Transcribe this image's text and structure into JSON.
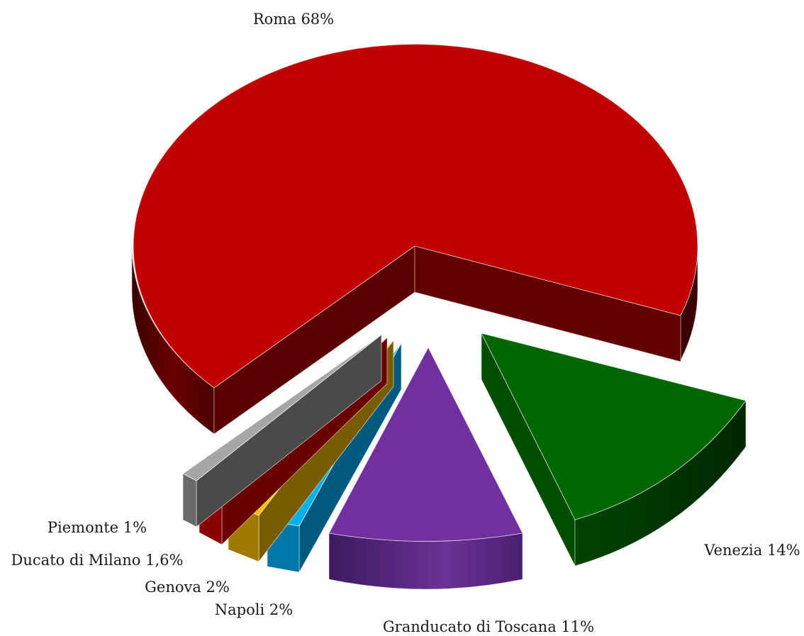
{
  "chart_data": {
    "type": "pie",
    "style": "3d-exploded",
    "title": "",
    "slices": [
      {
        "label": "Roma 68%",
        "name": "Roma",
        "value": 68,
        "color": "#c00000",
        "side_color": "#5c0000"
      },
      {
        "label": "Venezia 14%",
        "name": "Venezia",
        "value": 14,
        "color": "#006600",
        "side_color": "#003300"
      },
      {
        "label": "Granducato di Toscana 11%",
        "name": "Granducato di Toscana",
        "value": 11,
        "color": "#7030a0",
        "side_color": "#4a1f6e"
      },
      {
        "label": "Napoli 2%",
        "name": "Napoli",
        "value": 2,
        "color": "#00b0f0",
        "side_color": "#006a94"
      },
      {
        "label": "Genova 2%",
        "name": "Genova",
        "value": 2,
        "color": "#ffc000",
        "side_color": "#9a7400"
      },
      {
        "label": "Ducato di Milano 1,6%",
        "name": "Ducato di Milano",
        "value": 1.6,
        "color": "#ff0000",
        "side_color": "#8a0000"
      },
      {
        "label": "Piemonte 1%",
        "name": "Piemonte",
        "value": 1,
        "color": "#a6a6a6",
        "side_color": "#5f5f5f"
      }
    ],
    "legend": "none"
  }
}
